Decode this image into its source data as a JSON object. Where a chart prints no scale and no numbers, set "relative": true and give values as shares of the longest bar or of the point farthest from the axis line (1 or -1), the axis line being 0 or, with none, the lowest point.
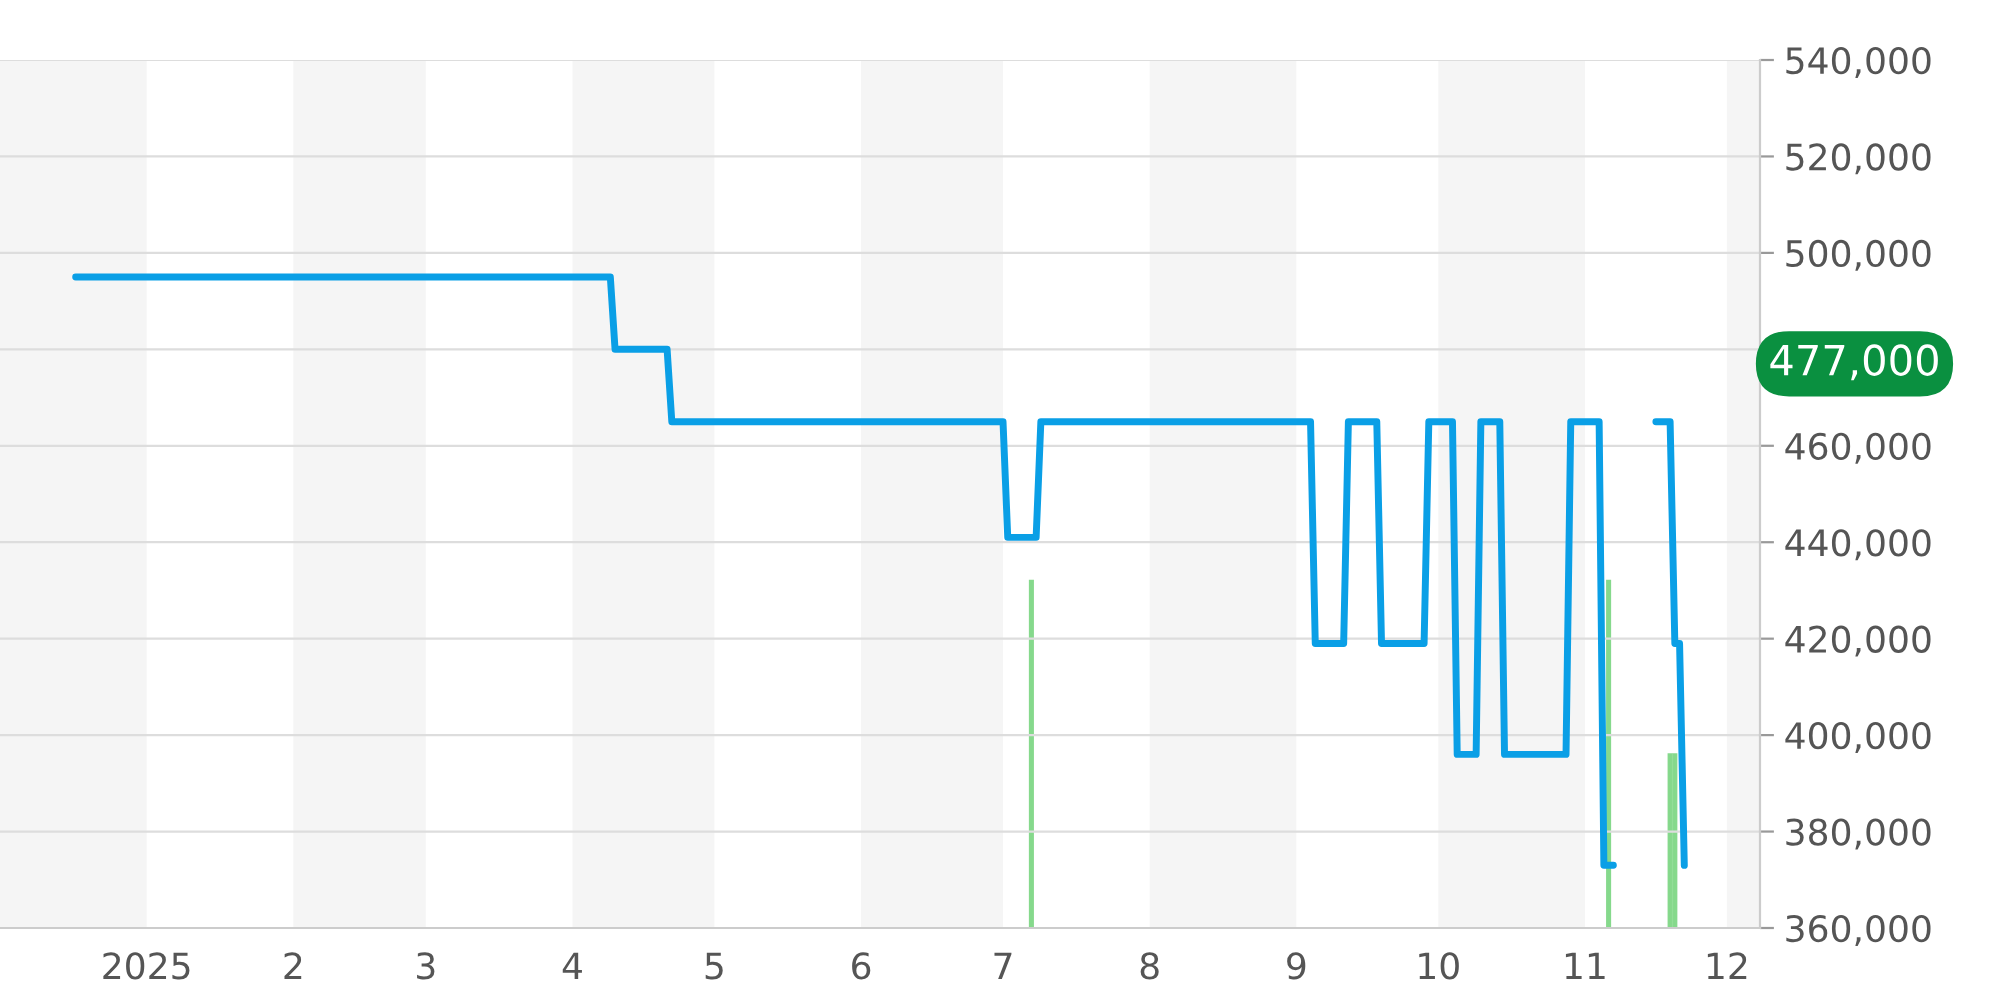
{
  "chart_data": [
    {
      "type": "line",
      "xlim": [
        "2024-12-01",
        "2025-12-08"
      ],
      "xticks": [
        {
          "value": "2025-01-01",
          "label": "2025"
        },
        {
          "value": "2025-02-01",
          "label": "2"
        },
        {
          "value": "2025-03-01",
          "label": "3"
        },
        {
          "value": "2025-04-01",
          "label": "4"
        },
        {
          "value": "2025-05-01",
          "label": "5"
        },
        {
          "value": "2025-06-01",
          "label": "6"
        },
        {
          "value": "2025-07-01",
          "label": "7"
        },
        {
          "value": "2025-08-01",
          "label": "8"
        },
        {
          "value": "2025-09-01",
          "label": "9"
        },
        {
          "value": "2025-10-01",
          "label": "10"
        },
        {
          "value": "2025-11-01",
          "label": "11"
        },
        {
          "value": "2025-12-01",
          "label": "12"
        }
      ],
      "ylim": [
        360000,
        540000
      ],
      "yticks": [
        {
          "value": 360000,
          "label": "360,000"
        },
        {
          "value": 380000,
          "label": "380,000"
        },
        {
          "value": 400000,
          "label": "400,000"
        },
        {
          "value": 420000,
          "label": "420,000"
        },
        {
          "value": 440000,
          "label": "440,000"
        },
        {
          "value": 460000,
          "label": "460,000"
        },
        {
          "value": 480000,
          "label": null
        },
        {
          "value": 500000,
          "label": "500,000"
        },
        {
          "value": 520000,
          "label": "520,000"
        },
        {
          "value": 540000,
          "label": "540,000"
        }
      ],
      "grid": "y",
      "bands": [
        {
          "axis": "x",
          "from": "2024-12-01",
          "to": "2025-01-01",
          "color": "#f5f5f5"
        },
        {
          "axis": "x",
          "from": "2025-02-01",
          "to": "2025-03-01",
          "color": "#f5f5f5"
        },
        {
          "axis": "x",
          "from": "2025-04-01",
          "to": "2025-05-01",
          "color": "#f5f5f5"
        },
        {
          "axis": "x",
          "from": "2025-06-01",
          "to": "2025-07-01",
          "color": "#f5f5f5"
        },
        {
          "axis": "x",
          "from": "2025-08-01",
          "to": "2025-09-01",
          "color": "#f5f5f5"
        },
        {
          "axis": "x",
          "from": "2025-10-01",
          "to": "2025-11-01",
          "color": "#f5f5f5"
        },
        {
          "axis": "x",
          "from": "2025-12-01",
          "to": "2025-12-08",
          "color": "#f5f5f5"
        }
      ],
      "annotations": [
        {
          "text": "477,000",
          "x": "2025-12-08",
          "y": 477000
        }
      ],
      "series": [
        {
          "color": "#0a9fe6",
          "x": [
            "2024-12-17",
            "2025-04-09",
            "2025-04-10",
            "2025-04-21",
            "2025-04-22",
            "2025-07-01",
            "2025-07-02",
            "2025-07-08",
            "2025-07-09",
            "2025-09-04",
            "2025-09-05",
            "2025-09-11",
            "2025-09-12",
            "2025-09-18",
            "2025-09-19",
            "2025-09-28",
            "2025-09-29",
            "2025-10-04",
            "2025-10-05",
            "2025-10-09",
            "2025-10-10",
            "2025-10-14",
            "2025-10-15",
            "2025-10-28",
            "2025-10-29",
            "2025-11-04",
            "2025-11-05",
            "2025-11-07",
            "2025-11-10",
            "2025-11-16",
            "2025-11-19",
            "2025-11-20",
            "2025-11-21",
            "2025-11-22"
          ],
          "values": [
            495000,
            495000,
            480000,
            480000,
            465000,
            465000,
            441000,
            441000,
            465000,
            465000,
            419000,
            419000,
            465000,
            465000,
            419000,
            419000,
            465000,
            465000,
            396000,
            396000,
            465000,
            465000,
            396000,
            396000,
            465000,
            465000,
            373000,
            373000,
            null,
            465000,
            465000,
            419000,
            419000,
            373000
          ]
        }
      ]
    },
    {
      "type": "bar",
      "relative": true,
      "tick_labels": false,
      "xlim": [
        "2024-12-01",
        "2025-12-08"
      ],
      "xticks": [
        "2025-01-01",
        "2025-02-01",
        "2025-03-01",
        "2025-04-01",
        "2025-05-01",
        "2025-06-01",
        "2025-07-01",
        "2025-08-01",
        "2025-09-01",
        "2025-10-01",
        "2025-11-01",
        "2025-12-01"
      ],
      "series": [
        {
          "color": "#86d98c",
          "x": [
            "2025-07-07",
            "2025-11-06",
            "2025-11-19",
            "2025-11-20"
          ],
          "values": [
            1,
            1,
            0.5,
            0.5
          ]
        }
      ]
    }
  ]
}
